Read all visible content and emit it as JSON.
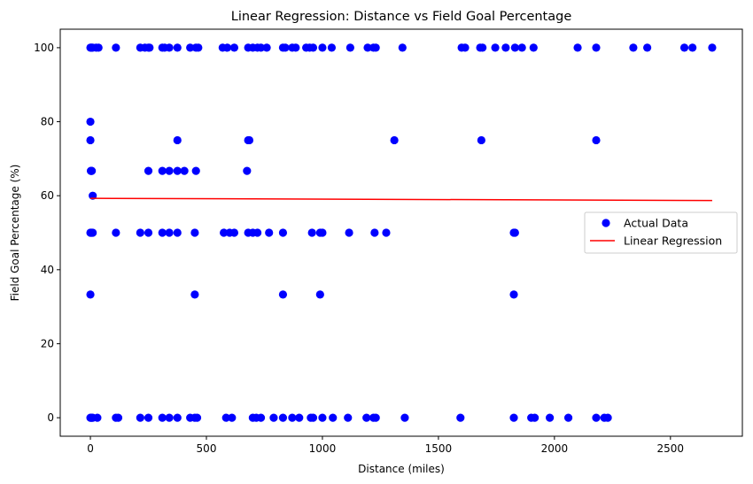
{
  "chart_data": {
    "type": "scatter",
    "title": "Linear Regression: Distance vs Field Goal Percentage",
    "xlabel": "Distance (miles)",
    "ylabel": "Field Goal Percentage (%)",
    "xlim": [
      -130,
      2810
    ],
    "ylim": [
      -5,
      105
    ],
    "xticks": [
      0,
      500,
      1000,
      1500,
      2000,
      2500
    ],
    "yticks": [
      0,
      20,
      40,
      60,
      80,
      100
    ],
    "grid": false,
    "legend": {
      "placement": "center-right",
      "entries": [
        {
          "label": "Actual Data",
          "marker": "circle",
          "color": "#0000ff"
        },
        {
          "label": "Linear Regression",
          "marker": "line",
          "color": "#ff0000"
        }
      ]
    },
    "series": [
      {
        "type": "scatter",
        "color": "#0000ff",
        "points": [
          [
            0,
            100
          ],
          [
            3,
            100
          ],
          [
            6,
            100
          ],
          [
            10,
            100
          ],
          [
            25,
            100
          ],
          [
            35,
            100
          ],
          [
            110,
            100
          ],
          [
            215,
            100
          ],
          [
            235,
            100
          ],
          [
            250,
            100
          ],
          [
            255,
            100
          ],
          [
            310,
            100
          ],
          [
            320,
            100
          ],
          [
            340,
            100
          ],
          [
            375,
            100
          ],
          [
            430,
            100
          ],
          [
            455,
            100
          ],
          [
            465,
            100
          ],
          [
            570,
            100
          ],
          [
            590,
            100
          ],
          [
            620,
            100
          ],
          [
            680,
            100
          ],
          [
            700,
            100
          ],
          [
            720,
            100
          ],
          [
            735,
            100
          ],
          [
            760,
            100
          ],
          [
            830,
            100
          ],
          [
            840,
            100
          ],
          [
            870,
            100
          ],
          [
            885,
            100
          ],
          [
            930,
            100
          ],
          [
            945,
            100
          ],
          [
            960,
            100
          ],
          [
            1000,
            100
          ],
          [
            1040,
            100
          ],
          [
            1120,
            100
          ],
          [
            1195,
            100
          ],
          [
            1220,
            100
          ],
          [
            1230,
            100
          ],
          [
            1345,
            100
          ],
          [
            1600,
            100
          ],
          [
            1615,
            100
          ],
          [
            1680,
            100
          ],
          [
            1690,
            100
          ],
          [
            1745,
            100
          ],
          [
            1790,
            100
          ],
          [
            1830,
            100
          ],
          [
            1860,
            100
          ],
          [
            1910,
            100
          ],
          [
            2100,
            100
          ],
          [
            2180,
            100
          ],
          [
            2340,
            100
          ],
          [
            2400,
            100
          ],
          [
            2560,
            100
          ],
          [
            2595,
            100
          ],
          [
            2680,
            100
          ],
          [
            0,
            80
          ],
          [
            0,
            75
          ],
          [
            2,
            66.7
          ],
          [
            4,
            66.7
          ],
          [
            6,
            66.7
          ],
          [
            10,
            60
          ],
          [
            0,
            50
          ],
          [
            3,
            50
          ],
          [
            6,
            50
          ],
          [
            10,
            50
          ],
          [
            110,
            50
          ],
          [
            215,
            50
          ],
          [
            250,
            50
          ],
          [
            310,
            50
          ],
          [
            340,
            50
          ],
          [
            375,
            50
          ],
          [
            450,
            50
          ],
          [
            575,
            50
          ],
          [
            600,
            50
          ],
          [
            620,
            50
          ],
          [
            680,
            50
          ],
          [
            700,
            50
          ],
          [
            720,
            50
          ],
          [
            770,
            50
          ],
          [
            830,
            50
          ],
          [
            955,
            50
          ],
          [
            990,
            50
          ],
          [
            1000,
            50
          ],
          [
            1115,
            50
          ],
          [
            1225,
            50
          ],
          [
            1275,
            50
          ],
          [
            1825,
            50
          ],
          [
            1830,
            50
          ],
          [
            0,
            33.3
          ],
          [
            450,
            33.3
          ],
          [
            830,
            33.3
          ],
          [
            990,
            33.3
          ],
          [
            1825,
            33.3
          ],
          [
            250,
            66.7
          ],
          [
            310,
            66.7
          ],
          [
            340,
            66.7
          ],
          [
            375,
            66.7
          ],
          [
            405,
            66.7
          ],
          [
            455,
            66.7
          ],
          [
            675,
            66.7
          ],
          [
            375,
            75
          ],
          [
            680,
            75
          ],
          [
            685,
            75
          ],
          [
            1310,
            75
          ],
          [
            1685,
            75
          ],
          [
            2180,
            75
          ],
          [
            0,
            0
          ],
          [
            3,
            0
          ],
          [
            6,
            0
          ],
          [
            10,
            0
          ],
          [
            30,
            0
          ],
          [
            110,
            0
          ],
          [
            120,
            0
          ],
          [
            215,
            0
          ],
          [
            250,
            0
          ],
          [
            310,
            0
          ],
          [
            340,
            0
          ],
          [
            375,
            0
          ],
          [
            430,
            0
          ],
          [
            450,
            0
          ],
          [
            460,
            0
          ],
          [
            585,
            0
          ],
          [
            610,
            0
          ],
          [
            700,
            0
          ],
          [
            715,
            0
          ],
          [
            735,
            0
          ],
          [
            790,
            0
          ],
          [
            830,
            0
          ],
          [
            870,
            0
          ],
          [
            900,
            0
          ],
          [
            950,
            0
          ],
          [
            960,
            0
          ],
          [
            1000,
            0
          ],
          [
            1045,
            0
          ],
          [
            1110,
            0
          ],
          [
            1190,
            0
          ],
          [
            1220,
            0
          ],
          [
            1230,
            0
          ],
          [
            1355,
            0
          ],
          [
            1595,
            0
          ],
          [
            1825,
            0
          ],
          [
            1900,
            0
          ],
          [
            1915,
            0
          ],
          [
            1980,
            0
          ],
          [
            2060,
            0
          ],
          [
            2180,
            0
          ],
          [
            2215,
            0
          ],
          [
            2230,
            0
          ]
        ]
      },
      {
        "type": "line",
        "color": "#ff0000",
        "points": [
          [
            0,
            59.3
          ],
          [
            2680,
            58.7
          ]
        ]
      }
    ]
  }
}
